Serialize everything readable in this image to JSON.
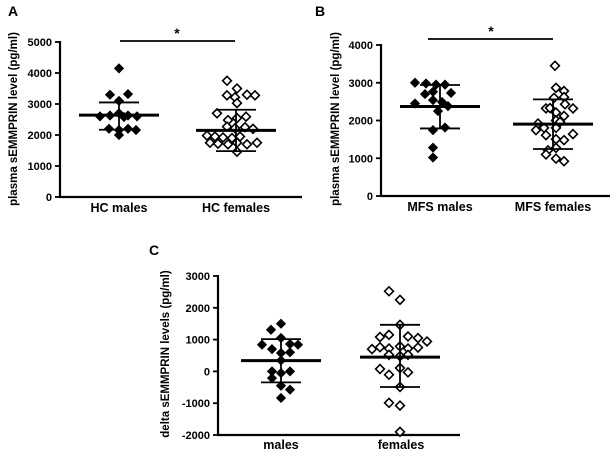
{
  "colors": {
    "foreground": "#000000",
    "background": "#ffffff"
  },
  "chart_data": [
    {
      "id": "A",
      "type": "scatter",
      "panel_label": "A",
      "ylabel": "plasma sEMMPRIN level (pg/ml)",
      "ylim": [
        0,
        5000
      ],
      "yticks": [
        0,
        1000,
        2000,
        3000,
        4000,
        5000
      ],
      "grid": false,
      "significance": {
        "label": "*",
        "between": [
          "HC males",
          "HC females"
        ]
      },
      "groups": [
        {
          "label": "HC males",
          "marker": "filled-diamond",
          "mean": 2640,
          "sd_high": 3050,
          "sd_low": 2170,
          "points": [
            {
              "dx": 0,
              "v": 4150
            },
            {
              "dx": -9,
              "v": 3300
            },
            {
              "dx": 9,
              "v": 3320
            },
            {
              "dx": 0,
              "v": 3100
            },
            {
              "dx": -19,
              "v": 2600
            },
            {
              "dx": -9,
              "v": 2630
            },
            {
              "dx": 0,
              "v": 2700
            },
            {
              "dx": 5,
              "v": 2580
            },
            {
              "dx": 9,
              "v": 2630
            },
            {
              "dx": 18,
              "v": 2600
            },
            {
              "dx": -10,
              "v": 2200
            },
            {
              "dx": 0,
              "v": 2160
            },
            {
              "dx": 9,
              "v": 2200
            },
            {
              "dx": 17,
              "v": 2160
            },
            {
              "dx": 0,
              "v": 2000
            }
          ]
        },
        {
          "label": "HC females",
          "marker": "open-diamond",
          "mean": 2150,
          "sd_high": 2815,
          "sd_low": 1480,
          "points": [
            {
              "dx": -9,
              "v": 3750
            },
            {
              "dx": 1,
              "v": 3500
            },
            {
              "dx": -9,
              "v": 3280
            },
            {
              "dx": -1,
              "v": 3215
            },
            {
              "dx": 11,
              "v": 3300
            },
            {
              "dx": 19,
              "v": 3280
            },
            {
              "dx": 1,
              "v": 3030
            },
            {
              "dx": -19,
              "v": 2700
            },
            {
              "dx": -8,
              "v": 2480
            },
            {
              "dx": 1,
              "v": 2545
            },
            {
              "dx": 10,
              "v": 2590
            },
            {
              "dx": -9,
              "v": 2270
            },
            {
              "dx": -1,
              "v": 2220
            },
            {
              "dx": 9,
              "v": 2250
            },
            {
              "dx": 17,
              "v": 2200
            },
            {
              "dx": -29,
              "v": 1980
            },
            {
              "dx": -21,
              "v": 1950
            },
            {
              "dx": -13,
              "v": 1920
            },
            {
              "dx": -4,
              "v": 1900
            },
            {
              "dx": 4,
              "v": 1950
            },
            {
              "dx": -26,
              "v": 1750
            },
            {
              "dx": -18,
              "v": 1720
            },
            {
              "dx": -8,
              "v": 1700
            },
            {
              "dx": 1,
              "v": 1750
            },
            {
              "dx": 11,
              "v": 1700
            },
            {
              "dx": 21,
              "v": 1750
            },
            {
              "dx": 1,
              "v": 1460
            }
          ]
        }
      ]
    },
    {
      "id": "B",
      "type": "scatter",
      "panel_label": "B",
      "ylabel": "plasma sEMMPRIN level (pg/ml)",
      "ylim": [
        0,
        4000
      ],
      "yticks": [
        0,
        1000,
        2000,
        3000,
        4000
      ],
      "grid": false,
      "significance": {
        "label": "*",
        "between": [
          "MFS males",
          "MFS females"
        ]
      },
      "groups": [
        {
          "label": "MFS males",
          "marker": "filled-diamond",
          "mean": 2370,
          "sd_high": 2940,
          "sd_low": 1790,
          "points": [
            {
              "dx": -25,
              "v": 3000
            },
            {
              "dx": -14,
              "v": 2980
            },
            {
              "dx": -4,
              "v": 2950
            },
            {
              "dx": 5,
              "v": 2950
            },
            {
              "dx": -15,
              "v": 2700
            },
            {
              "dx": -7,
              "v": 2760
            },
            {
              "dx": 11,
              "v": 2730
            },
            {
              "dx": -25,
              "v": 2450
            },
            {
              "dx": -7,
              "v": 2540
            },
            {
              "dx": 2,
              "v": 2490
            },
            {
              "dx": 8,
              "v": 2380
            },
            {
              "dx": -2,
              "v": 2250
            },
            {
              "dx": -7,
              "v": 1745
            },
            {
              "dx": 5,
              "v": 1815
            },
            {
              "dx": -7,
              "v": 1280
            },
            {
              "dx": -7,
              "v": 1020
            }
          ]
        },
        {
          "label": "MFS females",
          "marker": "open-diamond",
          "mean": 1905,
          "sd_high": 2560,
          "sd_low": 1245,
          "points": [
            {
              "dx": 2,
              "v": 3450
            },
            {
              "dx": 3,
              "v": 2865
            },
            {
              "dx": 11,
              "v": 2780
            },
            {
              "dx": 1,
              "v": 2600
            },
            {
              "dx": 11,
              "v": 2620
            },
            {
              "dx": 12,
              "v": 2430
            },
            {
              "dx": 20,
              "v": 2320
            },
            {
              "dx": -7,
              "v": 2320
            },
            {
              "dx": -3,
              "v": 2330
            },
            {
              "dx": 3,
              "v": 2210
            },
            {
              "dx": 11,
              "v": 2120
            },
            {
              "dx": -15,
              "v": 1920
            },
            {
              "dx": 3,
              "v": 2000
            },
            {
              "dx": 7,
              "v": 1960
            },
            {
              "dx": -9,
              "v": 1805
            },
            {
              "dx": 3,
              "v": 1805
            },
            {
              "dx": -17,
              "v": 1745
            },
            {
              "dx": -7,
              "v": 1610
            },
            {
              "dx": 20,
              "v": 1640
            },
            {
              "dx": 3,
              "v": 1505
            },
            {
              "dx": 11,
              "v": 1480
            },
            {
              "dx": -5,
              "v": 1210
            },
            {
              "dx": 3,
              "v": 1275
            },
            {
              "dx": -7,
              "v": 1100
            },
            {
              "dx": 3,
              "v": 990
            },
            {
              "dx": 11,
              "v": 920
            }
          ]
        }
      ]
    },
    {
      "id": "C",
      "type": "scatter",
      "panel_label": "C",
      "ylabel": "delta sEMMPRIN levels (pg/ml)",
      "ylim": [
        -2000,
        3000
      ],
      "yticks": [
        -2000,
        -1000,
        0,
        1000,
        2000,
        3000
      ],
      "grid": false,
      "significance": null,
      "groups": [
        {
          "label": "males",
          "marker": "filled-diamond",
          "mean": 340,
          "sd_high": 1015,
          "sd_low": -345,
          "points": [
            {
              "dx": -10,
              "v": 1310
            },
            {
              "dx": 0,
              "v": 1500
            },
            {
              "dx": 0,
              "v": 1050
            },
            {
              "dx": -19,
              "v": 840
            },
            {
              "dx": -9,
              "v": 700
            },
            {
              "dx": 9,
              "v": 860
            },
            {
              "dx": 17,
              "v": 840
            },
            {
              "dx": 0,
              "v": 580
            },
            {
              "dx": 9,
              "v": 600
            },
            {
              "dx": 0,
              "v": 345
            },
            {
              "dx": -9,
              "v": 0
            },
            {
              "dx": 0,
              "v": -50
            },
            {
              "dx": 9,
              "v": 0
            },
            {
              "dx": -9,
              "v": -210
            },
            {
              "dx": 0,
              "v": -450
            },
            {
              "dx": 9,
              "v": -575
            },
            {
              "dx": 0,
              "v": -835
            }
          ]
        },
        {
          "label": "females",
          "marker": "open-diamond",
          "mean": 450,
          "sd_high": 1465,
          "sd_low": -490,
          "points": [
            {
              "dx": -11,
              "v": 2520
            },
            {
              "dx": 0,
              "v": 2250
            },
            {
              "dx": 0,
              "v": 1465
            },
            {
              "dx": -20,
              "v": 1080
            },
            {
              "dx": -11,
              "v": 1150
            },
            {
              "dx": 8,
              "v": 1100
            },
            {
              "dx": 18,
              "v": 1048
            },
            {
              "dx": 27,
              "v": 941
            },
            {
              "dx": -28,
              "v": 700
            },
            {
              "dx": -20,
              "v": 760
            },
            {
              "dx": -11,
              "v": 720
            },
            {
              "dx": 0,
              "v": 785
            },
            {
              "dx": 8,
              "v": 720
            },
            {
              "dx": 18,
              "v": 750
            },
            {
              "dx": -11,
              "v": 520
            },
            {
              "dx": 0,
              "v": 480
            },
            {
              "dx": 8,
              "v": 520
            },
            {
              "dx": -20,
              "v": 75
            },
            {
              "dx": -11,
              "v": -105
            },
            {
              "dx": 0,
              "v": 105
            },
            {
              "dx": 8,
              "v": -30
            },
            {
              "dx": 0,
              "v": -490
            },
            {
              "dx": -11,
              "v": -990
            },
            {
              "dx": 0,
              "v": -1075
            },
            {
              "dx": 0,
              "v": -1900
            }
          ]
        }
      ]
    }
  ]
}
